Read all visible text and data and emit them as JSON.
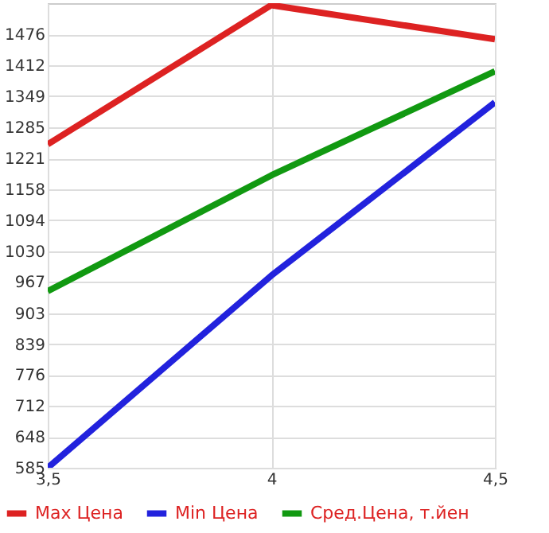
{
  "chart_data": {
    "type": "line",
    "x": [
      3.5,
      4,
      4.5
    ],
    "series": [
      {
        "name": "Max Цена",
        "color": "#dd2222",
        "values": [
          1250,
          1536,
          1466
        ]
      },
      {
        "name": "Min Цена",
        "color": "#2222dd",
        "values": [
          585,
          980,
          1336
        ]
      },
      {
        "name": "Сред.Цена, т.йен",
        "color": "#119911",
        "values": [
          948,
          1186,
          1400
        ]
      }
    ],
    "xlim": [
      3.5,
      4.5
    ],
    "xticks": [
      {
        "value": 3.5,
        "label": "3,5"
      },
      4,
      {
        "value": 4.5,
        "label": "4,5"
      }
    ],
    "ylim": [
      585,
      1540
    ],
    "yticks": [
      585,
      648,
      712,
      776,
      839,
      903,
      967,
      1030,
      1094,
      1158,
      1221,
      1285,
      1349,
      1412,
      1476
    ],
    "grid": true,
    "legend": "bottom",
    "marker": "none",
    "line_style": "solid"
  }
}
